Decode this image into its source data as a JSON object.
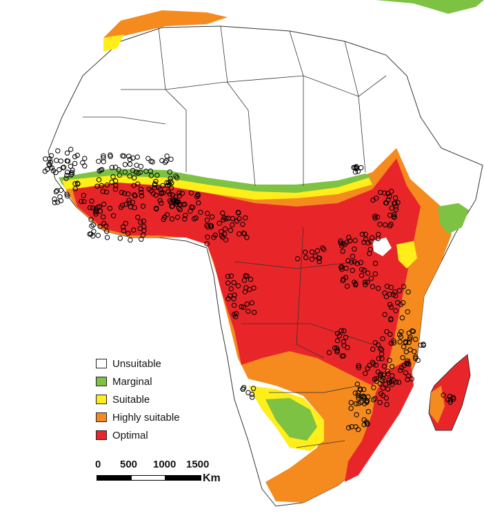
{
  "legend": {
    "items": [
      {
        "label": "Unsuitable",
        "color": "#ffffff"
      },
      {
        "label": "Marginal",
        "color": "#7dc242"
      },
      {
        "label": "Suitable",
        "color": "#ffee1a"
      },
      {
        "label": "Highly suitable",
        "color": "#f58a1f"
      },
      {
        "label": "Optimal",
        "color": "#e8262a"
      }
    ]
  },
  "scale": {
    "ticks": [
      "0",
      "500",
      "1000",
      "1500"
    ],
    "unit": "Km"
  },
  "colors": {
    "border": "#333333",
    "point": "#000000",
    "background": "#ffffff"
  }
}
